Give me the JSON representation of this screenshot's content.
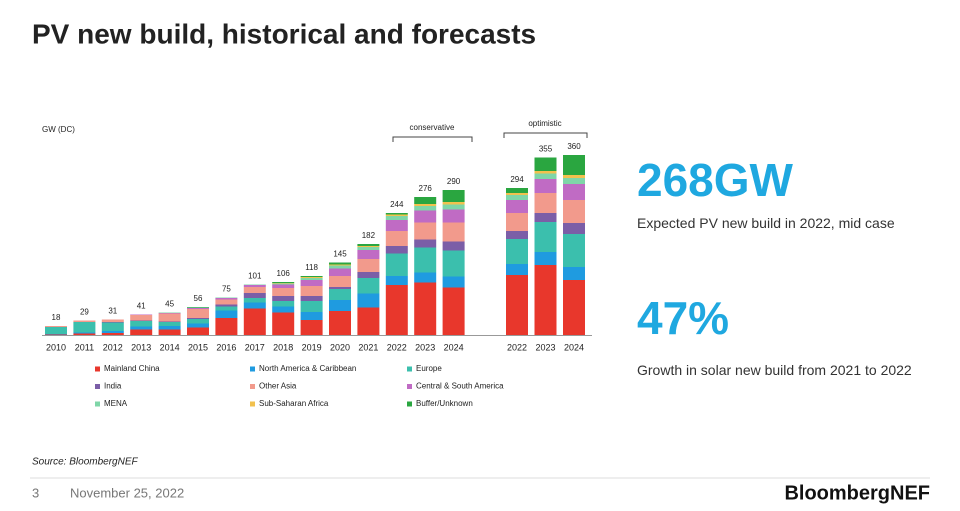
{
  "title": "PV new build, historical and forecasts",
  "chart_data": {
    "type": "stacked-bar",
    "axis_label": "GW (DC)",
    "annotations": [
      "conservative",
      "optimistic"
    ],
    "categories": [
      "2010",
      "2011",
      "2012",
      "2013",
      "2014",
      "2015",
      "2016",
      "2017",
      "2018",
      "2019",
      "2020",
      "2021",
      "2022",
      "2023",
      "2024",
      "2022",
      "2023",
      "2024"
    ],
    "total_labels": [
      18,
      29,
      31,
      41,
      45,
      56,
      75,
      101,
      106,
      118,
      145,
      182,
      244,
      276,
      290,
      294,
      355,
      360
    ],
    "series": [
      {
        "name": "Mainland China",
        "color": "#e8372c",
        "values": [
          1,
          3,
          4,
          11,
          11,
          15,
          34,
          53,
          45,
          30,
          48,
          55,
          100,
          105,
          95,
          120,
          140,
          110
        ]
      },
      {
        "name": "North America & Caribbean",
        "color": "#1f9be0",
        "values": [
          1,
          2,
          4,
          6,
          7,
          8,
          15,
          12,
          12,
          16,
          22,
          28,
          18,
          20,
          22,
          22,
          26,
          26
        ]
      },
      {
        "name": "Europe",
        "color": "#3bbfad",
        "values": [
          14,
          21,
          17,
          11,
          8,
          9,
          8,
          9,
          11,
          22,
          22,
          31,
          45,
          50,
          52,
          50,
          60,
          66
        ]
      },
      {
        "name": "India",
        "color": "#7b5ea7",
        "values": [
          0,
          0,
          1,
          1,
          1,
          2,
          4,
          10,
          10,
          10,
          4,
          12,
          15,
          16,
          18,
          16,
          18,
          22
        ]
      },
      {
        "name": "Other Asia",
        "color": "#f29a8c",
        "values": [
          2,
          3,
          5,
          11,
          16,
          18,
          10,
          12,
          16,
          20,
          22,
          26,
          30,
          34,
          38,
          36,
          40,
          46
        ]
      },
      {
        "name": "Central & South America",
        "color": "#c06bc4",
        "values": [
          0,
          0,
          0,
          1,
          1,
          2,
          3,
          4,
          7,
          12,
          15,
          18,
          22,
          24,
          26,
          26,
          28,
          32
        ]
      },
      {
        "name": "MENA",
        "color": "#7fd6a8",
        "values": [
          0,
          0,
          0,
          0,
          1,
          1,
          1,
          1,
          2,
          4,
          6,
          6,
          8,
          9,
          10,
          10,
          11,
          12
        ]
      },
      {
        "name": "Sub-Saharan Africa",
        "color": "#f2c14e",
        "values": [
          0,
          0,
          0,
          0,
          0,
          0,
          0,
          0,
          1,
          2,
          2,
          2,
          3,
          4,
          5,
          4,
          5,
          6
        ]
      },
      {
        "name": "Buffer/Unknown",
        "color": "#2aa640",
        "values": [
          0,
          0,
          0,
          0,
          0,
          1,
          0,
          0,
          2,
          2,
          4,
          4,
          3,
          14,
          24,
          10,
          27,
          40
        ]
      }
    ]
  },
  "callouts": [
    {
      "value": "268GW",
      "text": "Expected PV new build in 2022, mid case"
    },
    {
      "value": "47%",
      "text": "Growth in solar new build from 2021 to 2022"
    }
  ],
  "source": "Source: BloombergNEF",
  "page_number": "3",
  "date": "November 25, 2022",
  "brand": "BloombergNEF"
}
